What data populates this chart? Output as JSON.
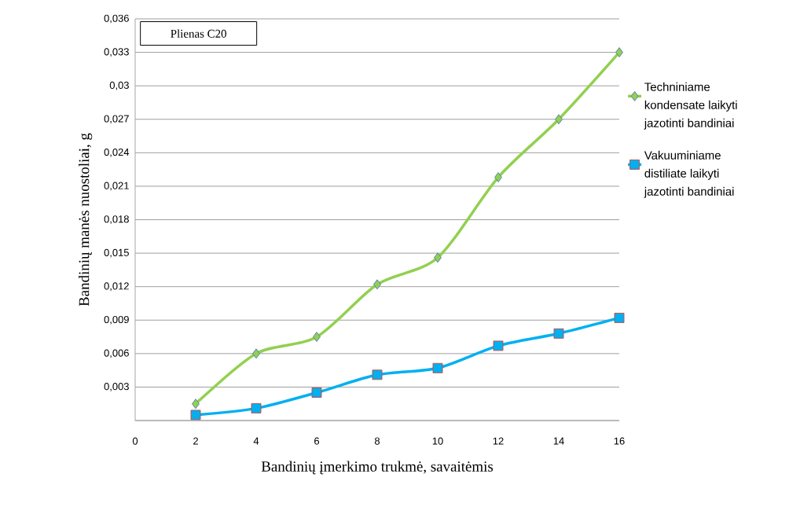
{
  "chart_data": {
    "type": "line",
    "xlabel": "Bandinių įmerkimo trukmė, savaitėmis",
    "ylabel": "Bandinių manės nuostoliai, g",
    "annotations": [
      "Plienas C20"
    ],
    "x": [
      2,
      4,
      6,
      8,
      10,
      12,
      14,
      16
    ],
    "series": [
      {
        "name": "Techniniame kondensate laikyti jazotinti bandiniai",
        "color": "#92d050",
        "marker": "diamond",
        "values": [
          0.0015,
          0.006,
          0.0075,
          0.0122,
          0.0146,
          0.0218,
          0.027,
          0.033
        ]
      },
      {
        "name": "Vakuuminiame distiliate laikyti jazotinti bandiniai",
        "color": "#00b0f0",
        "marker": "square",
        "values": [
          0.0005,
          0.0011,
          0.0025,
          0.0041,
          0.0047,
          0.0067,
          0.0078,
          0.0092
        ]
      }
    ],
    "xlim": [
      0,
      16
    ],
    "xticks": [
      0,
      2,
      4,
      6,
      8,
      10,
      12,
      14,
      16
    ],
    "ylim": [
      0,
      0.036
    ],
    "yticks": [
      {
        "value": 0,
        "label": null
      },
      {
        "value": 0.003,
        "label": "0,003"
      },
      {
        "value": 0.006,
        "label": "0,006"
      },
      {
        "value": 0.009,
        "label": "0,009"
      },
      {
        "value": 0.012,
        "label": "0,012"
      },
      {
        "value": 0.015,
        "label": "0,015"
      },
      {
        "value": 0.018,
        "label": "0,018"
      },
      {
        "value": 0.021,
        "label": "0,021"
      },
      {
        "value": 0.024,
        "label": "0,024"
      },
      {
        "value": 0.027,
        "label": "0,027"
      },
      {
        "value": 0.03,
        "label": "0,03"
      },
      {
        "value": 0.033,
        "label": "0,033"
      },
      {
        "value": 0.036,
        "label": "0,036"
      }
    ],
    "grid": "y",
    "legend": "right",
    "line_style": "solid"
  }
}
